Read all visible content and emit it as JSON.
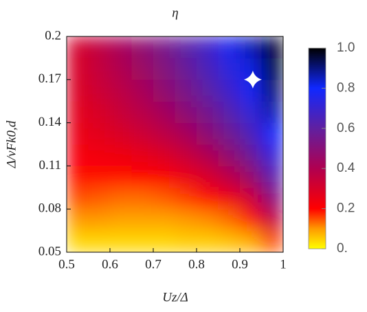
{
  "chart_data": {
    "type": "heatmap",
    "title": "η",
    "xlabel": "Uz/Δ",
    "ylabel": "Δ/vFk0,d",
    "x": [
      0.525,
      0.575,
      0.625,
      0.675,
      0.725,
      0.775,
      0.825,
      0.875,
      0.925,
      0.975
    ],
    "y": [
      0.0575,
      0.0725,
      0.0875,
      0.1025,
      0.1175,
      0.1325,
      0.1475,
      0.1625,
      0.1775,
      0.1925
    ],
    "z": [
      [
        0.04,
        0.04,
        0.04,
        0.04,
        0.04,
        0.05,
        0.05,
        0.06,
        0.08,
        0.15
      ],
      [
        0.1,
        0.1,
        0.09,
        0.09,
        0.09,
        0.1,
        0.11,
        0.13,
        0.18,
        0.35
      ],
      [
        0.15,
        0.14,
        0.13,
        0.13,
        0.14,
        0.16,
        0.19,
        0.24,
        0.32,
        0.5
      ],
      [
        0.19,
        0.19,
        0.19,
        0.2,
        0.21,
        0.25,
        0.3,
        0.37,
        0.46,
        0.62
      ],
      [
        0.22,
        0.23,
        0.24,
        0.26,
        0.29,
        0.34,
        0.4,
        0.48,
        0.57,
        0.72
      ],
      [
        0.25,
        0.27,
        0.3,
        0.33,
        0.37,
        0.42,
        0.49,
        0.56,
        0.65,
        0.8
      ],
      [
        0.27,
        0.3,
        0.34,
        0.38,
        0.43,
        0.49,
        0.55,
        0.63,
        0.72,
        0.86
      ],
      [
        0.29,
        0.33,
        0.37,
        0.42,
        0.48,
        0.54,
        0.61,
        0.69,
        0.78,
        0.91
      ],
      [
        0.3,
        0.35,
        0.4,
        0.45,
        0.51,
        0.58,
        0.65,
        0.73,
        0.82,
        0.95
      ],
      [
        0.31,
        0.36,
        0.42,
        0.48,
        0.54,
        0.61,
        0.68,
        0.77,
        0.86,
        0.98
      ]
    ],
    "xlim": [
      0.5,
      1
    ],
    "ylim": [
      0.05,
      0.2
    ],
    "xticks": [
      0.5,
      0.6,
      0.7,
      0.8,
      0.9,
      1
    ],
    "yticks": [
      0.05,
      0.08,
      0.11,
      0.14,
      0.17,
      0.2
    ],
    "colorbar": {
      "lim": [
        0,
        1
      ],
      "ticks": [
        {
          "value": 0,
          "label": "0."
        },
        0.2,
        0.4,
        0.6,
        0.8,
        {
          "value": 1,
          "label": "1.0"
        }
      ]
    },
    "colorscale": [
      {
        "value": 0,
        "color": "#ffff00"
      },
      {
        "value": 0.1,
        "color": "#ff9a00"
      },
      {
        "value": 0.2,
        "color": "#ff0000"
      },
      {
        "value": 0.4,
        "color": "#b00050"
      },
      {
        "value": 0.6,
        "color": "#6020a0"
      },
      {
        "value": 0.8,
        "color": "#1028ff"
      },
      {
        "value": 1,
        "color": "#000000"
      }
    ],
    "marker": {
      "x": 0.93,
      "y": 0.17,
      "color": "#ffffff"
    }
  }
}
